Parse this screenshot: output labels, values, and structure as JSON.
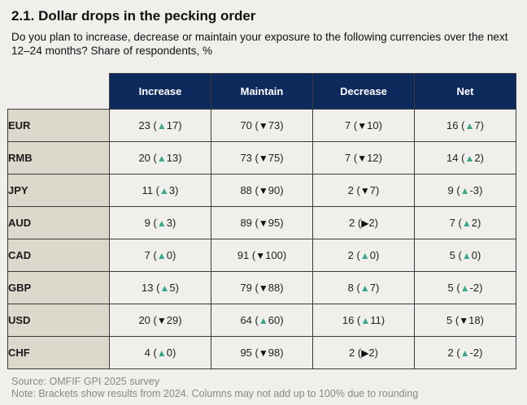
{
  "colors": {
    "header_bg": "#0d2a5c",
    "row_header_bg": "#dcd8cc",
    "up": "#3aa88a",
    "down": "#111111",
    "flat": "#111111"
  },
  "chart_data": {
    "type": "table",
    "title": "2.1. Dollar drops in the pecking order",
    "subtitle": "Do you plan to increase, decrease or maintain your exposure to the following currencies over the next 12–24 months? Share of respondents, %",
    "columns": [
      "Increase",
      "Maintain",
      "Decrease",
      "Net"
    ],
    "rows": [
      {
        "label": "EUR",
        "cells": [
          {
            "value": "23",
            "dir": "up",
            "prev": "17"
          },
          {
            "value": "70",
            "dir": "down",
            "prev": "73"
          },
          {
            "value": "7",
            "dir": "down",
            "prev": "10"
          },
          {
            "value": "16",
            "dir": "up",
            "prev": "7"
          }
        ]
      },
      {
        "label": "RMB",
        "cells": [
          {
            "value": "20",
            "dir": "up",
            "prev": "13"
          },
          {
            "value": "73",
            "dir": "down",
            "prev": "75"
          },
          {
            "value": "7",
            "dir": "down",
            "prev": "12"
          },
          {
            "value": "14",
            "dir": "up",
            "prev": "2"
          }
        ]
      },
      {
        "label": "JPY",
        "cells": [
          {
            "value": "11",
            "dir": "up",
            "prev": "3"
          },
          {
            "value": "88",
            "dir": "down",
            "prev": "90"
          },
          {
            "value": "2",
            "dir": "down",
            "prev": "7"
          },
          {
            "value": "9",
            "dir": "up",
            "prev": "-3"
          }
        ]
      },
      {
        "label": "AUD",
        "cells": [
          {
            "value": "9",
            "dir": "up",
            "prev": "3"
          },
          {
            "value": "89",
            "dir": "down",
            "prev": "95"
          },
          {
            "value": "2",
            "dir": "flat",
            "prev": "2"
          },
          {
            "value": "7",
            "dir": "up",
            "prev": "2"
          }
        ]
      },
      {
        "label": "CAD",
        "cells": [
          {
            "value": "7",
            "dir": "up",
            "prev": "0"
          },
          {
            "value": "91",
            "dir": "down",
            "prev": "100"
          },
          {
            "value": "2",
            "dir": "up",
            "prev": "0"
          },
          {
            "value": "5",
            "dir": "up",
            "prev": "0"
          }
        ]
      },
      {
        "label": "GBP",
        "cells": [
          {
            "value": "13",
            "dir": "up",
            "prev": "5"
          },
          {
            "value": "79",
            "dir": "down",
            "prev": "88"
          },
          {
            "value": "8",
            "dir": "up",
            "prev": "7"
          },
          {
            "value": "5",
            "dir": "up",
            "prev": "-2"
          }
        ]
      },
      {
        "label": "USD",
        "cells": [
          {
            "value": "20",
            "dir": "down",
            "prev": "29"
          },
          {
            "value": "64",
            "dir": "up",
            "prev": "60"
          },
          {
            "value": "16",
            "dir": "up",
            "prev": "11"
          },
          {
            "value": "5",
            "dir": "down",
            "prev": "18"
          }
        ]
      },
      {
        "label": "CHF",
        "cells": [
          {
            "value": "4",
            "dir": "up",
            "prev": "0"
          },
          {
            "value": "95",
            "dir": "down",
            "prev": "98"
          },
          {
            "value": "2",
            "dir": "flat",
            "prev": "2"
          },
          {
            "value": "2",
            "dir": "up",
            "prev": "-2"
          }
        ]
      }
    ]
  },
  "footer": {
    "source": "Source: OMFIF GPI 2025 survey",
    "note": "Note: Brackets show results from 2024. Columns may not add up to 100% due to rounding"
  }
}
